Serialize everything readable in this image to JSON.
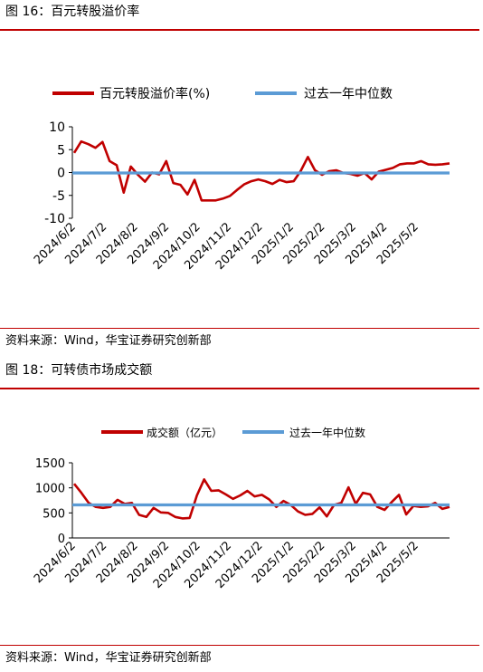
{
  "figures": [
    {
      "caption": "图 16：百元转股溢价率",
      "source": "资料来源：Wind，华宝证券研究创新部",
      "chart_data": {
        "type": "line",
        "title": "",
        "xlabel": "",
        "ylabel": "",
        "ylim": [
          -10,
          10
        ],
        "yticks": [
          10,
          5,
          0,
          -5,
          -10
        ],
        "x_tick_labels": [
          "2024/6/2",
          "2024/7/2",
          "2024/8/2",
          "2024/9/2",
          "2024/10/2",
          "2024/11/2",
          "2024/12/2",
          "2025/1/2",
          "2025/2/2",
          "2025/3/2",
          "2025/4/2",
          "2025/5/2"
        ],
        "grid": false,
        "legend": "top",
        "series": [
          {
            "name": "百元转股溢价率(%)",
            "color": "#c00000",
            "values": [
              4.3,
              6.8,
              6.2,
              5.4,
              6.7,
              2.5,
              1.6,
              -4.4,
              1.3,
              -0.5,
              -2.0,
              0.0,
              -0.4,
              2.5,
              -2.3,
              -2.7,
              -4.8,
              -1.6,
              -6.1,
              -6.1,
              -6.1,
              -5.7,
              -5.1,
              -3.8,
              -2.6,
              -1.9,
              -1.5,
              -1.9,
              -2.5,
              -1.6,
              -2.1,
              -1.9,
              0.4,
              3.4,
              0.5,
              -0.5,
              0.3,
              0.5,
              -0.1,
              -0.3,
              -0.7,
              -0.1,
              -1.5,
              0.2,
              0.6,
              1.0,
              1.8,
              2.0,
              2.0,
              2.5,
              1.8,
              1.7,
              1.8,
              2.0
            ]
          },
          {
            "name": "过去一年中位数",
            "color": "#5b9bd5",
            "values": [
              -0.1
            ]
          }
        ]
      }
    },
    {
      "caption": "图 18：可转债市场成交额",
      "source": "资料来源：Wind，华宝证券研究创新部",
      "chart_data": {
        "type": "line",
        "title": "",
        "xlabel": "",
        "ylabel": "",
        "ylim": [
          0,
          1500
        ],
        "yticks": [
          1500,
          1000,
          500,
          0
        ],
        "x_tick_labels": [
          "2024/6/2",
          "2024/7/2",
          "2024/8/2",
          "2024/9/2",
          "2024/10/2",
          "2024/11/2",
          "2024/12/2",
          "2025/1/2",
          "2025/2/2",
          "2025/3/2",
          "2025/4/2",
          "2025/5/2"
        ],
        "grid": false,
        "legend": "top",
        "series": [
          {
            "name": "成交额（亿元）",
            "color": "#c00000",
            "values": [
              1080,
              900,
              700,
              620,
              600,
              620,
              760,
              680,
              700,
              460,
              420,
              600,
              510,
              500,
              420,
              390,
              400,
              850,
              1170,
              940,
              950,
              870,
              780,
              850,
              940,
              830,
              860,
              770,
              620,
              740,
              660,
              530,
              460,
              480,
              610,
              430,
              660,
              700,
              1010,
              680,
              900,
              870,
              620,
              560,
              720,
              860,
              470,
              640,
              620,
              630,
              700,
              580,
              620
            ]
          },
          {
            "name": "过去一年中位数",
            "color": "#5b9bd5",
            "values": [
              660
            ]
          }
        ]
      }
    }
  ]
}
